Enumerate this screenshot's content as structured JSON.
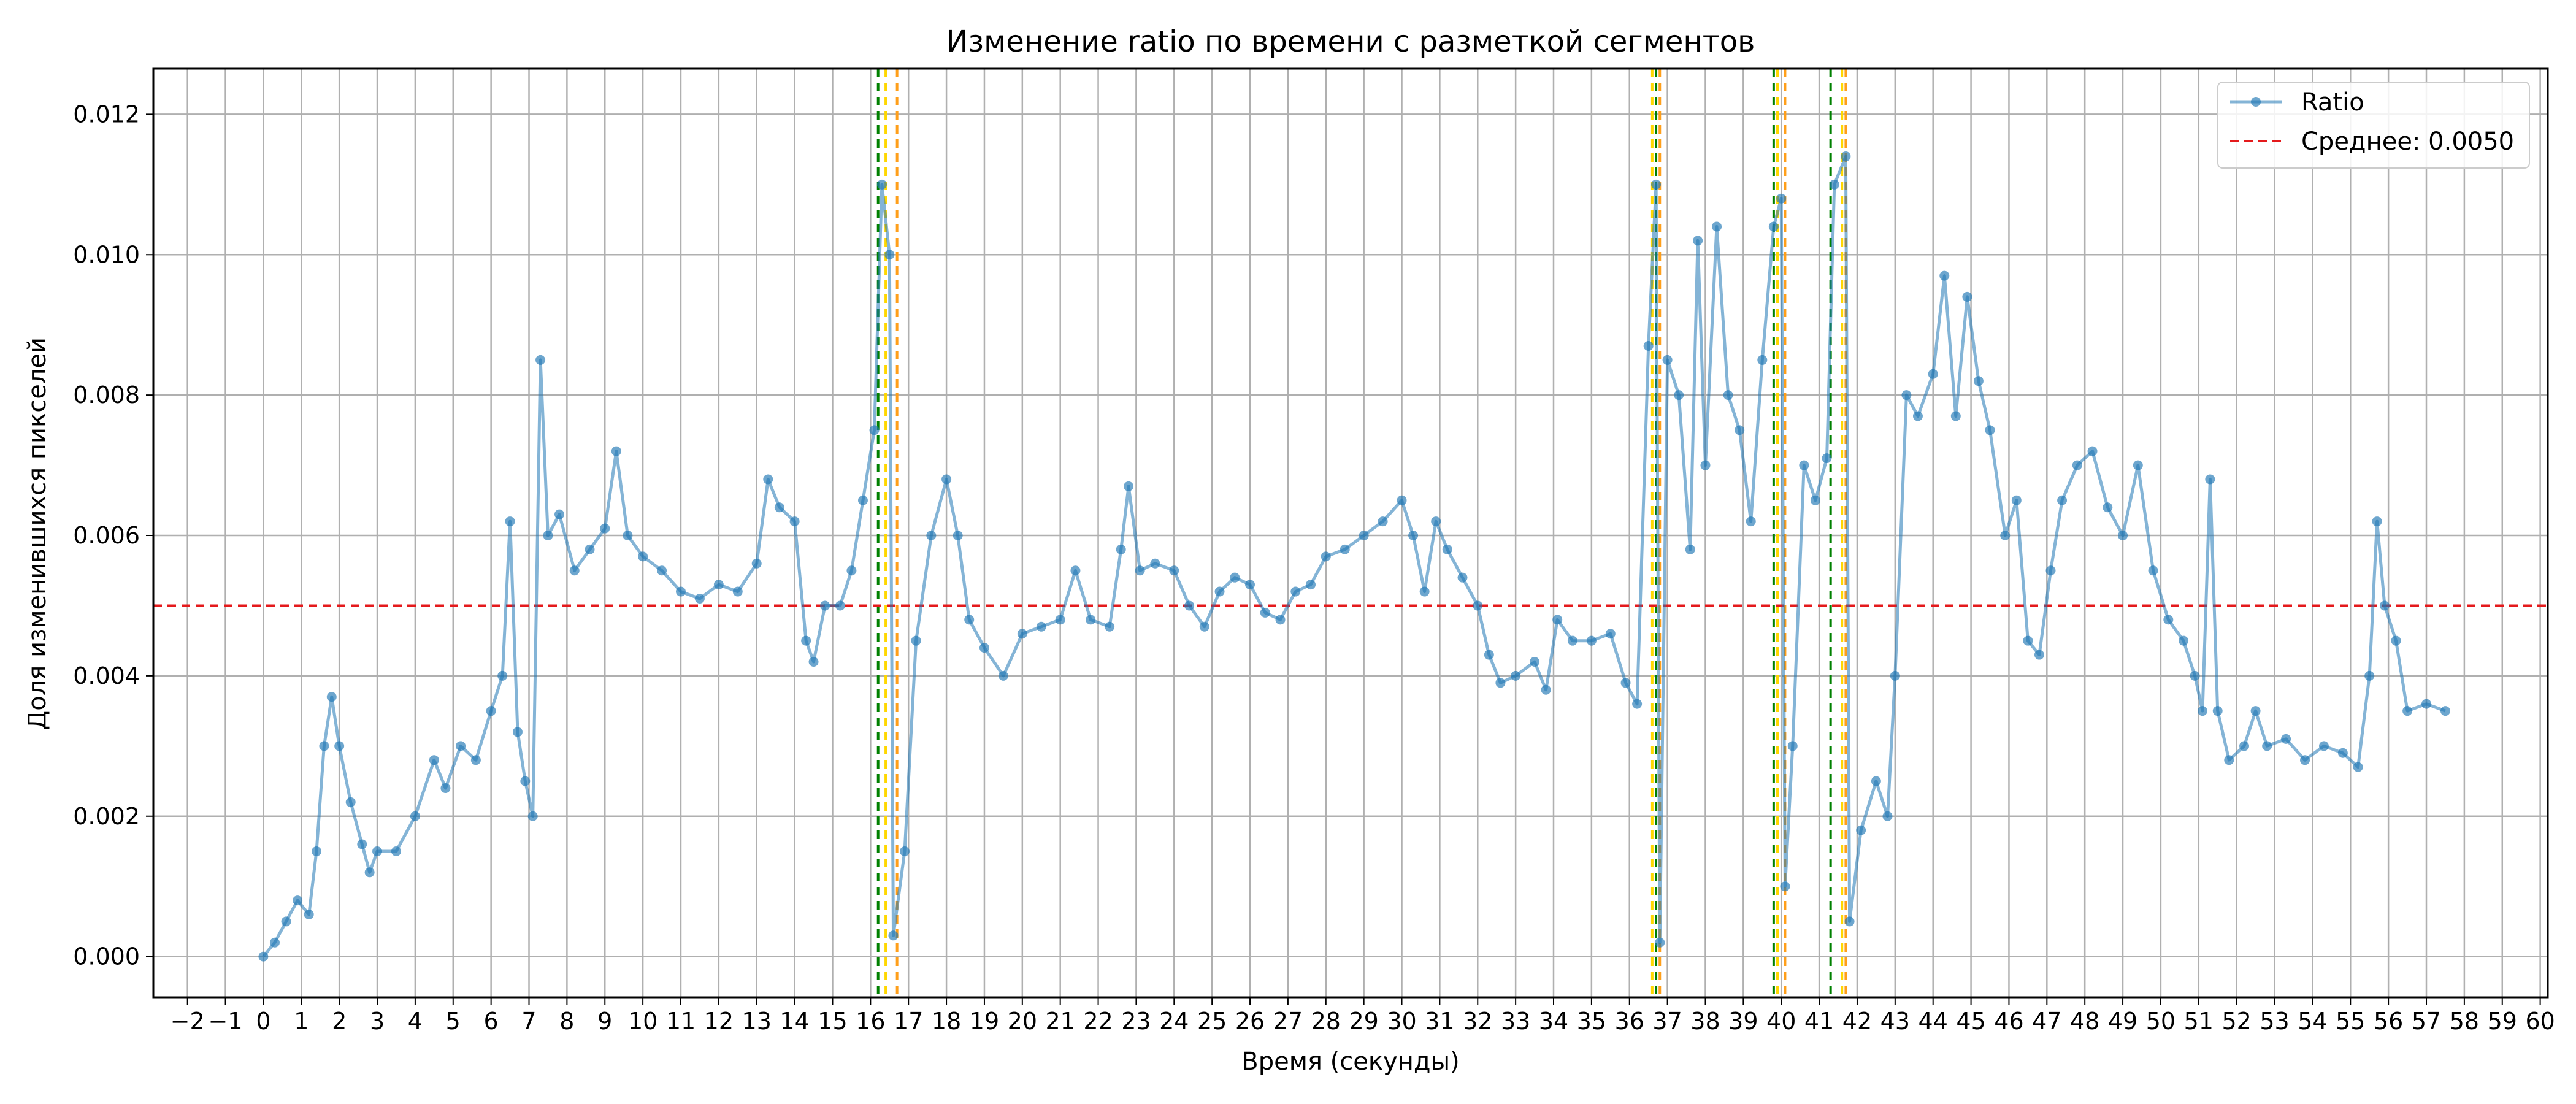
{
  "chart_data": {
    "type": "line",
    "title": "Изменение ratio по времени с разметкой сегментов",
    "xlabel": "Время (секунды)",
    "ylabel": "Доля изменившихся пикселей",
    "xlim": [
      -2.9,
      60.2
    ],
    "ylim": [
      -0.00058,
      0.01265
    ],
    "x_ticks": [
      -2,
      -1,
      0,
      1,
      2,
      3,
      4,
      5,
      6,
      7,
      8,
      9,
      10,
      11,
      12,
      13,
      14,
      15,
      16,
      17,
      18,
      19,
      20,
      21,
      22,
      23,
      24,
      25,
      26,
      27,
      28,
      29,
      30,
      31,
      32,
      33,
      34,
      35,
      36,
      37,
      38,
      39,
      40,
      41,
      42,
      43,
      44,
      45,
      46,
      47,
      48,
      49,
      50,
      51,
      52,
      53,
      54,
      55,
      56,
      57,
      58,
      59,
      60
    ],
    "y_ticks": [
      0,
      0.002,
      0.004,
      0.006,
      0.008,
      0.01,
      0.012
    ],
    "y_tick_labels": [
      "0.000",
      "0.002",
      "0.004",
      "0.006",
      "0.008",
      "0.010",
      "0.012"
    ],
    "grid": true,
    "legend_position": "top-right",
    "colors": {
      "series": "#1f77b4",
      "mean": "#e41a1c",
      "green_marker": "#008000",
      "yellow_marker": "#ffd700",
      "orange_marker": "#ff9f1a"
    },
    "series": [
      {
        "name": "Ratio",
        "points": [
          [
            0.0,
            0.0
          ],
          [
            0.3,
            0.0002
          ],
          [
            0.6,
            0.0005
          ],
          [
            0.9,
            0.0008
          ],
          [
            1.2,
            0.0006
          ],
          [
            1.4,
            0.0015
          ],
          [
            1.6,
            0.003
          ],
          [
            1.8,
            0.0037
          ],
          [
            2.0,
            0.003
          ],
          [
            2.3,
            0.0022
          ],
          [
            2.6,
            0.0016
          ],
          [
            2.8,
            0.0012
          ],
          [
            3.0,
            0.0015
          ],
          [
            3.5,
            0.0015
          ],
          [
            4.0,
            0.002
          ],
          [
            4.5,
            0.0028
          ],
          [
            4.8,
            0.0024
          ],
          [
            5.2,
            0.003
          ],
          [
            5.6,
            0.0028
          ],
          [
            6.0,
            0.0035
          ],
          [
            6.3,
            0.004
          ],
          [
            6.5,
            0.0062
          ],
          [
            6.7,
            0.0032
          ],
          [
            6.9,
            0.0025
          ],
          [
            7.1,
            0.002
          ],
          [
            7.3,
            0.0085
          ],
          [
            7.5,
            0.006
          ],
          [
            7.8,
            0.0063
          ],
          [
            8.2,
            0.0055
          ],
          [
            8.6,
            0.0058
          ],
          [
            9.0,
            0.0061
          ],
          [
            9.3,
            0.0072
          ],
          [
            9.6,
            0.006
          ],
          [
            10.0,
            0.0057
          ],
          [
            10.5,
            0.0055
          ],
          [
            11.0,
            0.0052
          ],
          [
            11.5,
            0.0051
          ],
          [
            12.0,
            0.0053
          ],
          [
            12.5,
            0.0052
          ],
          [
            13.0,
            0.0056
          ],
          [
            13.3,
            0.0068
          ],
          [
            13.6,
            0.0064
          ],
          [
            14.0,
            0.0062
          ],
          [
            14.3,
            0.0045
          ],
          [
            14.5,
            0.0042
          ],
          [
            14.8,
            0.005
          ],
          [
            15.2,
            0.005
          ],
          [
            15.5,
            0.0055
          ],
          [
            15.8,
            0.0065
          ],
          [
            16.1,
            0.0075
          ],
          [
            16.3,
            0.011
          ],
          [
            16.5,
            0.01
          ],
          [
            16.6,
            0.0003
          ],
          [
            16.9,
            0.0015
          ],
          [
            17.2,
            0.0045
          ],
          [
            17.6,
            0.006
          ],
          [
            18.0,
            0.0068
          ],
          [
            18.3,
            0.006
          ],
          [
            18.6,
            0.0048
          ],
          [
            19.0,
            0.0044
          ],
          [
            19.5,
            0.004
          ],
          [
            20.0,
            0.0046
          ],
          [
            20.5,
            0.0047
          ],
          [
            21.0,
            0.0048
          ],
          [
            21.4,
            0.0055
          ],
          [
            21.8,
            0.0048
          ],
          [
            22.3,
            0.0047
          ],
          [
            22.6,
            0.0058
          ],
          [
            22.8,
            0.0067
          ],
          [
            23.1,
            0.0055
          ],
          [
            23.5,
            0.0056
          ],
          [
            24.0,
            0.0055
          ],
          [
            24.4,
            0.005
          ],
          [
            24.8,
            0.0047
          ],
          [
            25.2,
            0.0052
          ],
          [
            25.6,
            0.0054
          ],
          [
            26.0,
            0.0053
          ],
          [
            26.4,
            0.0049
          ],
          [
            26.8,
            0.0048
          ],
          [
            27.2,
            0.0052
          ],
          [
            27.6,
            0.0053
          ],
          [
            28.0,
            0.0057
          ],
          [
            28.5,
            0.0058
          ],
          [
            29.0,
            0.006
          ],
          [
            29.5,
            0.0062
          ],
          [
            30.0,
            0.0065
          ],
          [
            30.3,
            0.006
          ],
          [
            30.6,
            0.0052
          ],
          [
            30.9,
            0.0062
          ],
          [
            31.2,
            0.0058
          ],
          [
            31.6,
            0.0054
          ],
          [
            32.0,
            0.005
          ],
          [
            32.3,
            0.0043
          ],
          [
            32.6,
            0.0039
          ],
          [
            33.0,
            0.004
          ],
          [
            33.5,
            0.0042
          ],
          [
            33.8,
            0.0038
          ],
          [
            34.1,
            0.0048
          ],
          [
            34.5,
            0.0045
          ],
          [
            35.0,
            0.0045
          ],
          [
            35.5,
            0.0046
          ],
          [
            35.9,
            0.0039
          ],
          [
            36.2,
            0.0036
          ],
          [
            36.5,
            0.0087
          ],
          [
            36.7,
            0.011
          ],
          [
            36.8,
            0.0002
          ],
          [
            37.0,
            0.0085
          ],
          [
            37.3,
            0.008
          ],
          [
            37.6,
            0.0058
          ],
          [
            37.8,
            0.0102
          ],
          [
            38.0,
            0.007
          ],
          [
            38.3,
            0.0104
          ],
          [
            38.6,
            0.008
          ],
          [
            38.9,
            0.0075
          ],
          [
            39.2,
            0.0062
          ],
          [
            39.5,
            0.0085
          ],
          [
            39.8,
            0.0104
          ],
          [
            40.0,
            0.0108
          ],
          [
            40.1,
            0.001
          ],
          [
            40.3,
            0.003
          ],
          [
            40.6,
            0.007
          ],
          [
            40.9,
            0.0065
          ],
          [
            41.2,
            0.0071
          ],
          [
            41.4,
            0.011
          ],
          [
            41.7,
            0.0114
          ],
          [
            41.8,
            0.0005
          ],
          [
            42.1,
            0.0018
          ],
          [
            42.5,
            0.0025
          ],
          [
            42.8,
            0.002
          ],
          [
            43.0,
            0.004
          ],
          [
            43.3,
            0.008
          ],
          [
            43.6,
            0.0077
          ],
          [
            44.0,
            0.0083
          ],
          [
            44.3,
            0.0097
          ],
          [
            44.6,
            0.0077
          ],
          [
            44.9,
            0.0094
          ],
          [
            45.2,
            0.0082
          ],
          [
            45.5,
            0.0075
          ],
          [
            45.9,
            0.006
          ],
          [
            46.2,
            0.0065
          ],
          [
            46.5,
            0.0045
          ],
          [
            46.8,
            0.0043
          ],
          [
            47.1,
            0.0055
          ],
          [
            47.4,
            0.0065
          ],
          [
            47.8,
            0.007
          ],
          [
            48.2,
            0.0072
          ],
          [
            48.6,
            0.0064
          ],
          [
            49.0,
            0.006
          ],
          [
            49.4,
            0.007
          ],
          [
            49.8,
            0.0055
          ],
          [
            50.2,
            0.0048
          ],
          [
            50.6,
            0.0045
          ],
          [
            50.9,
            0.004
          ],
          [
            51.1,
            0.0035
          ],
          [
            51.3,
            0.0068
          ],
          [
            51.5,
            0.0035
          ],
          [
            51.8,
            0.0028
          ],
          [
            52.2,
            0.003
          ],
          [
            52.5,
            0.0035
          ],
          [
            52.8,
            0.003
          ],
          [
            53.3,
            0.0031
          ],
          [
            53.8,
            0.0028
          ],
          [
            54.3,
            0.003
          ],
          [
            54.8,
            0.0029
          ],
          [
            55.2,
            0.0027
          ],
          [
            55.5,
            0.004
          ],
          [
            55.7,
            0.0062
          ],
          [
            55.9,
            0.005
          ],
          [
            56.2,
            0.0045
          ],
          [
            56.5,
            0.0035
          ],
          [
            57.0,
            0.0036
          ],
          [
            57.5,
            0.0035
          ]
        ]
      },
      {
        "name": "Среднее: 0.0050",
        "y": 0.005,
        "style": "dashed"
      }
    ],
    "vertical_markers": [
      {
        "x": 16.2,
        "color": "green"
      },
      {
        "x": 16.4,
        "color": "yellow"
      },
      {
        "x": 16.7,
        "color": "orange"
      },
      {
        "x": 36.6,
        "color": "yellow"
      },
      {
        "x": 36.7,
        "color": "green"
      },
      {
        "x": 36.8,
        "color": "orange"
      },
      {
        "x": 39.8,
        "color": "green"
      },
      {
        "x": 39.9,
        "color": "yellow"
      },
      {
        "x": 40.1,
        "color": "orange"
      },
      {
        "x": 41.3,
        "color": "green"
      },
      {
        "x": 41.6,
        "color": "yellow"
      },
      {
        "x": 41.7,
        "color": "orange"
      }
    ],
    "legend": [
      "Ratio",
      "Среднее: 0.0050"
    ]
  }
}
